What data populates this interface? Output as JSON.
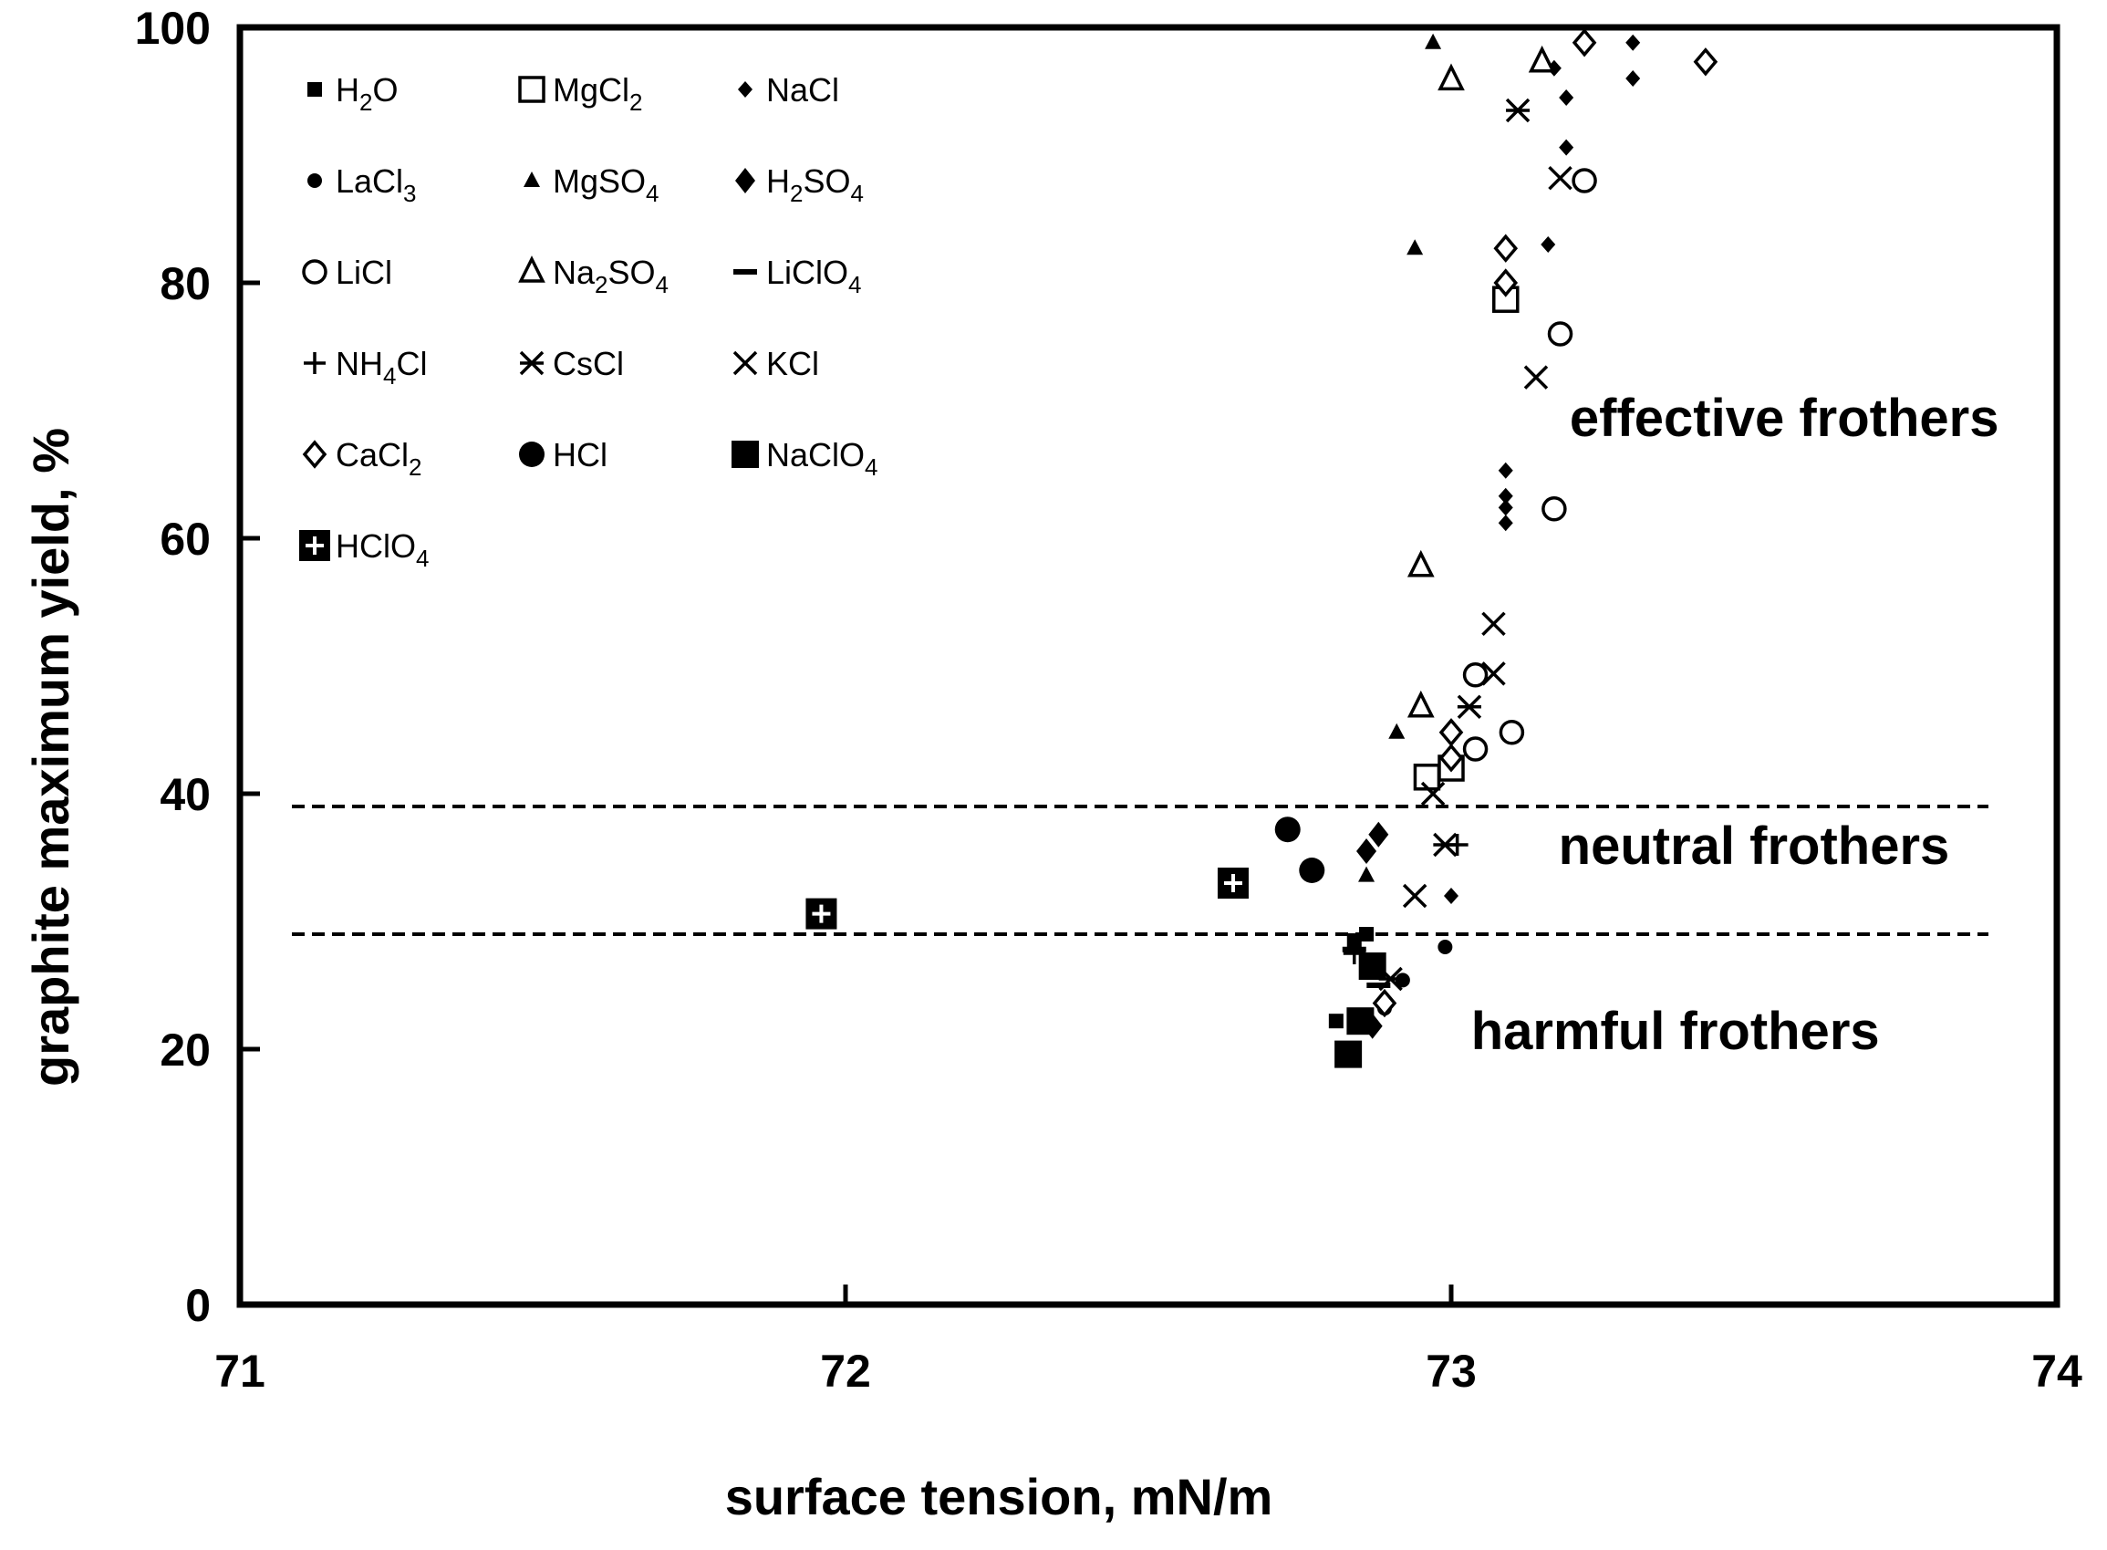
{
  "chart_data": {
    "type": "scatter",
    "title": "",
    "xlabel": "surface tension, mN/m",
    "ylabel": "graphite maximum  yield, %",
    "xlim": [
      71,
      74
    ],
    "ylim": [
      0,
      100
    ],
    "x_ticks": [
      71,
      72,
      73,
      74
    ],
    "y_ticks": [
      0,
      20,
      40,
      60,
      80,
      100
    ],
    "x_tick_labels": [
      "71",
      "72",
      "73",
      "74"
    ],
    "y_tick_labels": [
      "0",
      "20",
      "40",
      "60",
      "80",
      "100"
    ],
    "grid": false,
    "legend_position": "top-left",
    "reference_lines": [
      {
        "name": "upper-threshold",
        "y": 39,
        "style": "dashed"
      },
      {
        "name": "lower-threshold",
        "y": 29,
        "style": "dashed"
      }
    ],
    "annotations": [
      {
        "text": "effective  frothers",
        "x": 73.55,
        "y": 68
      },
      {
        "text": "neutral frothers",
        "x": 73.5,
        "y": 34.5
      },
      {
        "text": "harmful frothers",
        "x": 73.37,
        "y": 20
      }
    ],
    "series": [
      {
        "name": "H2O",
        "label_parts": [
          [
            "H",
            ""
          ],
          [
            "2",
            "sub"
          ],
          [
            "O",
            ""
          ]
        ],
        "marker": "square-small",
        "points": [
          [
            72.81,
            22.2
          ],
          [
            72.84,
            28.5
          ],
          [
            72.86,
            29.0
          ]
        ]
      },
      {
        "name": "MgCl2",
        "label_parts": [
          [
            "MgCl",
            ""
          ],
          [
            "2",
            "sub"
          ]
        ],
        "marker": "square-open",
        "points": [
          [
            72.96,
            41.3
          ],
          [
            73.0,
            42.0
          ],
          [
            73.09,
            78.7
          ]
        ]
      },
      {
        "name": "NaCl",
        "label_parts": [
          [
            "NaCl",
            ""
          ]
        ],
        "marker": "diamond-small",
        "points": [
          [
            73.0,
            32.0
          ],
          [
            73.09,
            61.2
          ],
          [
            73.09,
            62.4
          ],
          [
            73.09,
            63.3
          ],
          [
            73.09,
            65.3
          ],
          [
            73.16,
            83.0
          ],
          [
            73.19,
            90.6
          ],
          [
            73.19,
            94.5
          ],
          [
            73.17,
            96.8
          ],
          [
            73.3,
            96.0
          ],
          [
            73.3,
            98.8
          ]
        ]
      },
      {
        "name": "LaCl3",
        "label_parts": [
          [
            "LaCl",
            ""
          ],
          [
            "3",
            "sub"
          ]
        ],
        "marker": "circle-small",
        "points": [
          [
            72.89,
            23.2
          ],
          [
            72.92,
            25.4
          ],
          [
            72.99,
            28.0
          ]
        ]
      },
      {
        "name": "MgSO4",
        "label_parts": [
          [
            "MgSO",
            ""
          ],
          [
            "4",
            "sub"
          ]
        ],
        "marker": "triangle-small",
        "points": [
          [
            72.86,
            33.6
          ],
          [
            72.91,
            44.8
          ],
          [
            72.94,
            82.7
          ],
          [
            72.97,
            98.8
          ]
        ]
      },
      {
        "name": "H2SO4",
        "label_parts": [
          [
            "H",
            ""
          ],
          [
            "2",
            "sub"
          ],
          [
            "SO",
            ""
          ],
          [
            "4",
            "sub"
          ]
        ],
        "marker": "diamond-filled",
        "points": [
          [
            72.87,
            21.8
          ],
          [
            72.86,
            35.5
          ],
          [
            72.88,
            36.8
          ]
        ]
      },
      {
        "name": "LiCl",
        "label_parts": [
          [
            "LiCl",
            ""
          ]
        ],
        "marker": "circle-open",
        "points": [
          [
            73.04,
            43.5
          ],
          [
            73.1,
            44.8
          ],
          [
            73.04,
            49.3
          ],
          [
            73.17,
            62.3
          ],
          [
            73.18,
            76.0
          ],
          [
            73.22,
            88.0
          ]
        ]
      },
      {
        "name": "Na2SO4",
        "label_parts": [
          [
            "Na",
            ""
          ],
          [
            "2",
            "sub"
          ],
          [
            "SO",
            ""
          ],
          [
            "4",
            "sub"
          ]
        ],
        "marker": "triangle-open",
        "points": [
          [
            72.95,
            46.8
          ],
          [
            72.95,
            57.8
          ],
          [
            73.0,
            95.9
          ],
          [
            73.15,
            97.3
          ]
        ]
      },
      {
        "name": "LiClO4",
        "label_parts": [
          [
            "LiClO",
            ""
          ],
          [
            "4",
            "sub"
          ]
        ],
        "marker": "dash",
        "points": [
          [
            72.84,
            27.8
          ],
          [
            72.88,
            25.0
          ]
        ]
      },
      {
        "name": "NH4Cl",
        "label_parts": [
          [
            "NH",
            ""
          ],
          [
            "4",
            "sub"
          ],
          [
            "Cl",
            ""
          ]
        ],
        "marker": "plus",
        "points": [
          [
            73.01,
            36.0
          ],
          [
            72.84,
            27.5
          ]
        ]
      },
      {
        "name": "CsCl",
        "label_parts": [
          [
            "CsCl",
            ""
          ]
        ],
        "marker": "asterisk",
        "points": [
          [
            72.9,
            25.5
          ],
          [
            72.99,
            36.0
          ],
          [
            73.03,
            46.8
          ],
          [
            73.11,
            93.5
          ]
        ]
      },
      {
        "name": "KCl",
        "label_parts": [
          [
            "KCl",
            ""
          ]
        ],
        "marker": "x",
        "points": [
          [
            72.94,
            32.0
          ],
          [
            72.97,
            40.0
          ],
          [
            73.07,
            49.4
          ],
          [
            73.07,
            53.3
          ],
          [
            73.14,
            72.6
          ],
          [
            73.18,
            88.2
          ]
        ]
      },
      {
        "name": "CaCl2",
        "label_parts": [
          [
            "CaCl",
            ""
          ],
          [
            "2",
            "sub"
          ]
        ],
        "marker": "diamond-open",
        "points": [
          [
            72.89,
            23.6
          ],
          [
            73.0,
            42.8
          ],
          [
            73.0,
            44.8
          ],
          [
            73.09,
            80.0
          ],
          [
            73.09,
            82.7
          ],
          [
            73.22,
            98.8
          ],
          [
            73.42,
            97.3
          ]
        ]
      },
      {
        "name": "HCl",
        "label_parts": [
          [
            "HCl",
            ""
          ]
        ],
        "marker": "circle-large",
        "points": [
          [
            72.73,
            37.2
          ],
          [
            72.77,
            34.0
          ]
        ]
      },
      {
        "name": "NaClO4",
        "label_parts": [
          [
            "NaClO",
            ""
          ],
          [
            "4",
            "sub"
          ]
        ],
        "marker": "square-large",
        "points": [
          [
            72.83,
            19.6
          ],
          [
            72.85,
            22.2
          ],
          [
            72.87,
            26.5
          ]
        ]
      },
      {
        "name": "HClO4",
        "label_parts": [
          [
            "HClO",
            ""
          ],
          [
            "4",
            "sub"
          ]
        ],
        "marker": "square-plus",
        "points": [
          [
            71.96,
            30.6
          ],
          [
            72.64,
            33.0
          ]
        ]
      }
    ]
  }
}
